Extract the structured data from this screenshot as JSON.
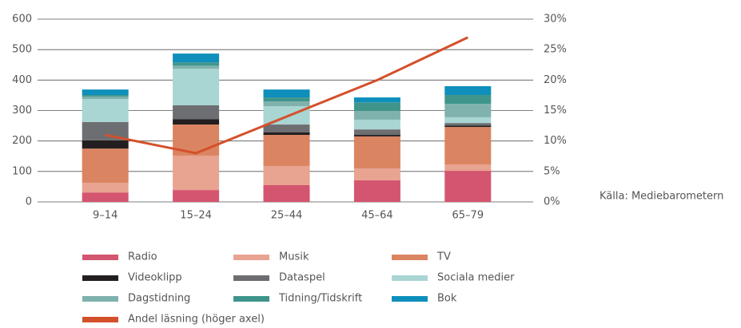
{
  "chart_data": {
    "type": "bar",
    "stacked": true,
    "categories": [
      "9–14",
      "15–24",
      "25–44",
      "45–64",
      "65–79"
    ],
    "series": [
      {
        "name": "Radio",
        "color": "#d4556f",
        "values": [
          31,
          39,
          55,
          71,
          102
        ]
      },
      {
        "name": "Musik",
        "color": "#e8a391",
        "values": [
          32,
          113,
          63,
          39,
          21
        ]
      },
      {
        "name": "TV",
        "color": "#db8461",
        "values": [
          112,
          102,
          102,
          105,
          123
        ]
      },
      {
        "name": "Videoklipp",
        "color": "#231f20",
        "values": [
          27,
          18,
          8,
          5,
          5
        ]
      },
      {
        "name": "Dataspel",
        "color": "#6d6e71",
        "values": [
          60,
          45,
          26,
          18,
          8
        ]
      },
      {
        "name": "Sociala medier",
        "color": "#a9d5d3",
        "values": [
          76,
          120,
          60,
          32,
          19
        ]
      },
      {
        "name": "Dagstidning",
        "color": "#7fb2ad",
        "values": [
          8,
          11,
          16,
          29,
          44
        ]
      },
      {
        "name": "Tidning/Tidskrift",
        "color": "#3f958c",
        "values": [
          5,
          10,
          13,
          28,
          29
        ]
      },
      {
        "name": "Bok",
        "color": "#0e8fbc",
        "values": [
          18,
          29,
          26,
          16,
          29
        ]
      },
      {
        "name": "Andel läsning (höger axel)",
        "color": "#d4502b",
        "type": "line",
        "axis": "y2",
        "values": [
          11,
          8,
          14,
          20,
          27
        ]
      }
    ],
    "ylim": [
      0,
      600
    ],
    "yticks": [
      0,
      100,
      200,
      300,
      400,
      500,
      600
    ],
    "y2lim": [
      0,
      30
    ],
    "y2ticks": [
      {
        "value": 0,
        "label": "0%"
      },
      {
        "value": 5,
        "label": "5%"
      },
      {
        "value": 10,
        "label": "10%"
      },
      {
        "value": 15,
        "label": "15%"
      },
      {
        "value": 20,
        "label": "20%"
      },
      {
        "value": 25,
        "label": "25%"
      },
      {
        "value": 30,
        "label": "30%"
      }
    ],
    "grid": true,
    "annotation": "Källa: Mediebarometern"
  }
}
